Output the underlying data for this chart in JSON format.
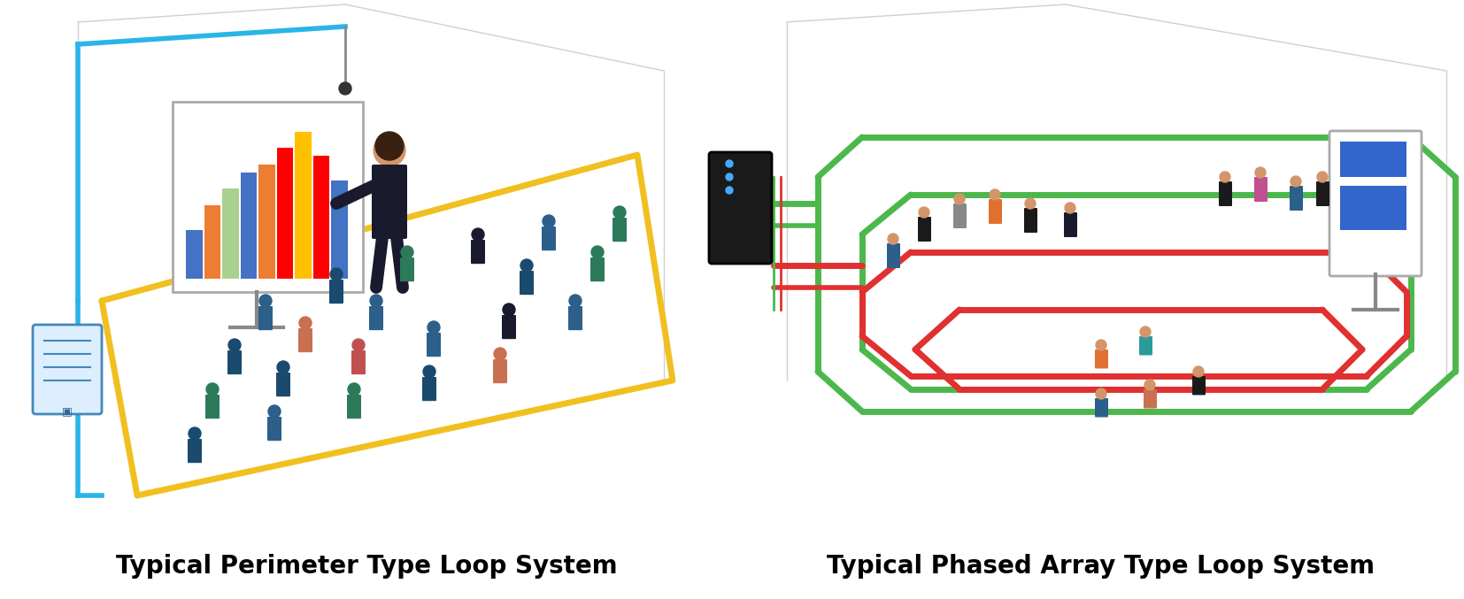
{
  "label_left": "Typical Perimeter Type Loop System",
  "label_right": "Typical Phased Array Type Loop System",
  "background_color": "#ffffff",
  "text_color": "#000000",
  "label_fontsize": 20,
  "label_fontweight": "bold",
  "fig_width": 16.54,
  "fig_height": 6.77,
  "dpi": 100
}
